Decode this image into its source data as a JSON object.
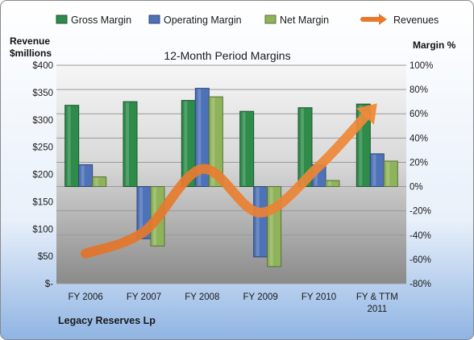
{
  "chart_data": {
    "type": "bar",
    "title": "12-Month Period Margins",
    "company": "Legacy Reserves Lp",
    "left_axis_label_lines": [
      "Revenue",
      "$millions"
    ],
    "right_axis_label": "Margin %",
    "categories": [
      [
        "FY 2006"
      ],
      [
        "FY 2007"
      ],
      [
        "FY 2008"
      ],
      [
        "FY 2009"
      ],
      [
        "FY 2010"
      ],
      [
        "FY & TTM",
        "2011"
      ]
    ],
    "series": [
      {
        "name": "Gross Margin",
        "axis": "right",
        "color": "#2e8b4a",
        "values": [
          67,
          70,
          71,
          62,
          65,
          68
        ]
      },
      {
        "name": "Operating Margin",
        "axis": "right",
        "color": "#4e72b8",
        "values": [
          18,
          -43,
          81,
          -58,
          18,
          27
        ]
      },
      {
        "name": "Net Margin",
        "axis": "right",
        "color": "#8fb35a",
        "values": [
          8,
          -49,
          74,
          -66,
          5,
          21
        ]
      }
    ],
    "line_series": {
      "name": "Revenues",
      "axis": "left",
      "color": "#e8792c",
      "values": [
        55,
        95,
        210,
        130,
        215,
        330
      ]
    },
    "left_axis": {
      "min": 0,
      "max": 400,
      "ticks": [
        0,
        50,
        100,
        150,
        200,
        250,
        300,
        350,
        400
      ],
      "tick_labels": [
        "$-",
        "$50",
        "$100",
        "$150",
        "$200",
        "$250",
        "$300",
        "$350",
        "$400"
      ]
    },
    "right_axis": {
      "min": -80,
      "max": 100,
      "ticks": [
        -80,
        -60,
        -40,
        -20,
        0,
        20,
        40,
        60,
        80,
        100
      ],
      "tick_labels": [
        "-80%",
        "-60%",
        "-40%",
        "-20%",
        "0%",
        "20%",
        "40%",
        "60%",
        "80%",
        "100%"
      ]
    },
    "grid": true,
    "legend": "top"
  }
}
